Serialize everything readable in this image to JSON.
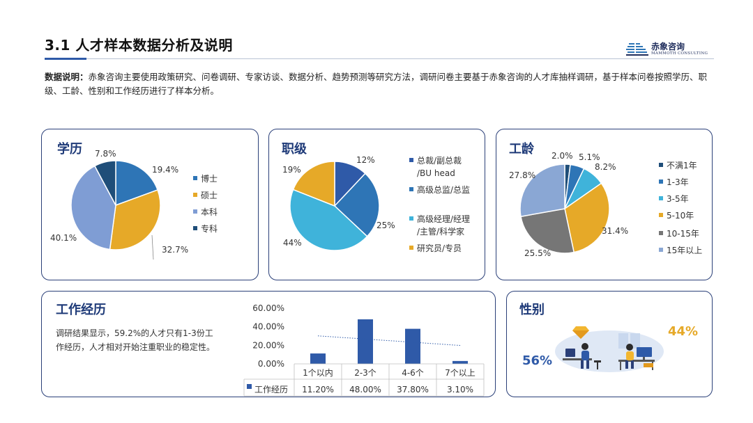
{
  "header": {
    "title": "3.1 人才样本数据分析及说明",
    "logo_cn": "赤象咨询",
    "logo_en": "MAMMOTH CONSULTING"
  },
  "intro": {
    "label": "数据说明：",
    "text": "赤象咨询主要使用政策研究、问卷调研、专家访谈、数据分析、趋势预测等研究方法，调研问卷主要基于赤象咨询的人才库抽样调研，基于样本问卷按照学历、职级、工龄、性别和工作经历进行了样本分析。"
  },
  "colors": {
    "navy": "#1f4e79",
    "blue": "#2e75b6",
    "gold": "#e6a928",
    "lavender": "#7f9dd4",
    "cyan": "#3fb3da",
    "gray": "#767676",
    "lightblue": "#8aa7d4",
    "bar": "#2f5aa8",
    "border": "#2a3f78"
  },
  "chart_data": [
    {
      "type": "pie",
      "title": "学历",
      "labels": [
        "博士",
        "硕士",
        "本科",
        "专科"
      ],
      "values": [
        19.4,
        32.7,
        40.1,
        7.8
      ],
      "value_labels": [
        "19.4%",
        "32.7%",
        "40.1%",
        "7.8%"
      ],
      "colors": [
        "#2e75b6",
        "#e6a928",
        "#7f9dd4",
        "#1f4e79"
      ],
      "legend": "right"
    },
    {
      "type": "pie",
      "title": "职级",
      "labels": [
        "总裁/副总裁/BU head",
        "高级总监/总监",
        "高级经理/经理/主管/科学家",
        "研究员/专员"
      ],
      "legend_lines": [
        [
          "总裁/副总裁",
          "/BU head"
        ],
        [
          "高级总监/总监"
        ],
        [
          "高级经理/经理",
          "/主管/科学家"
        ],
        [
          "研究员/专员"
        ]
      ],
      "values": [
        12,
        25,
        44,
        19
      ],
      "value_labels": [
        "12%",
        "25%",
        "44%",
        "19%"
      ],
      "colors": [
        "#2f5aa8",
        "#2e75b6",
        "#3fb3da",
        "#e6a928"
      ],
      "legend": "right"
    },
    {
      "type": "pie",
      "title": "工龄",
      "labels": [
        "不满1年",
        "1-3年",
        "3-5年",
        "5-10年",
        "10-15年",
        "15年以上"
      ],
      "values": [
        2.0,
        5.1,
        8.2,
        31.4,
        25.5,
        27.8
      ],
      "value_labels": [
        "2.0%",
        "5.1%",
        "8.2%",
        "31.4%",
        "25.5%",
        "27.8%"
      ],
      "colors": [
        "#1f4e79",
        "#2e75b6",
        "#3fb3da",
        "#e6a928",
        "#767676",
        "#8aa7d4"
      ],
      "legend": "right"
    },
    {
      "type": "bar",
      "title": "工作经历",
      "categories": [
        "1个以内",
        "2-3个",
        "4-6个",
        "7个以上"
      ],
      "series": [
        {
          "name": "工作经历",
          "values": [
            11.2,
            48.0,
            37.8,
            3.1
          ]
        }
      ],
      "value_labels": [
        "11.20%",
        "48.00%",
        "37.80%",
        "3.10%"
      ],
      "y_ticks": [
        "0.00%",
        "20.00%",
        "40.00%",
        "60.00%"
      ],
      "ylim": [
        0,
        60
      ],
      "trendline": "linear-dotted",
      "data_table": true
    },
    {
      "type": "pie",
      "title": "性别",
      "values": [
        56,
        44
      ],
      "value_labels": [
        "56%",
        "44%"
      ],
      "colors": [
        "#2e5aa8",
        "#e6a928"
      ]
    }
  ],
  "work": {
    "description": "调研结果显示，59.2%的人才只有1-3份工作经历，人才相对开始注重职业的稳定性。"
  }
}
